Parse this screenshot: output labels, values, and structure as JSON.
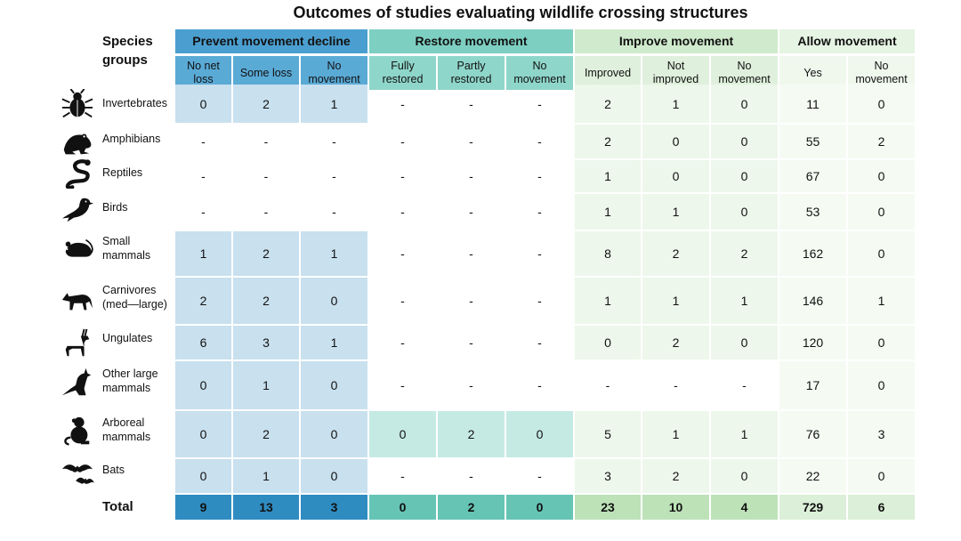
{
  "title": "Outcomes of studies evaluating wildlife crossing structures",
  "species_groups_label": "Species groups",
  "total_label": "Total",
  "colors": {
    "prevent_head": "#4b9fd0",
    "prevent_sub": "#5aaad6",
    "prevent_cell": "#c9e0ee",
    "prevent_total": "#2f8cc1",
    "restore_head": "#7dcfc2",
    "restore_sub": "#8fd6ca",
    "restore_cell": "#c5eae4",
    "restore_total": "#66c4b5",
    "improve_head": "#cfeacc",
    "improve_sub": "#dff0dc",
    "improve_cell": "#edf7eb",
    "improve_total": "#bde2b8",
    "allow_head": "#e6f4e3",
    "allow_sub": "#f0f8ee",
    "allow_cell": "#f5fbf3",
    "allow_total": "#dcefd8"
  },
  "chart_data": {
    "type": "table",
    "title": "Outcomes of studies evaluating wildlife crossing structures",
    "column_groups": [
      {
        "name": "Prevent movement decline",
        "columns": [
          "No net loss",
          "Some loss",
          "No movement"
        ]
      },
      {
        "name": "Restore movement",
        "columns": [
          "Fully restored",
          "Partly restored",
          "No movement"
        ]
      },
      {
        "name": "Improve movement",
        "columns": [
          "Improved",
          "Not improved",
          "No movement"
        ]
      },
      {
        "name": "Allow movement",
        "columns": [
          "Yes",
          "No movement"
        ]
      }
    ],
    "rows": [
      {
        "label": "Invertebrates",
        "icon": "insect-icon",
        "values": [
          "0",
          "2",
          "1",
          "-",
          "-",
          "-",
          "2",
          "1",
          "0",
          "11",
          "0"
        ]
      },
      {
        "label": "Amphibians",
        "icon": "frog-icon",
        "values": [
          "-",
          "-",
          "-",
          "-",
          "-",
          "-",
          "2",
          "0",
          "0",
          "55",
          "2"
        ]
      },
      {
        "label": "Reptiles",
        "icon": "snake-icon",
        "values": [
          "-",
          "-",
          "-",
          "-",
          "-",
          "-",
          "1",
          "0",
          "0",
          "67",
          "0"
        ]
      },
      {
        "label": "Birds",
        "icon": "bird-icon",
        "values": [
          "-",
          "-",
          "-",
          "-",
          "-",
          "-",
          "1",
          "1",
          "0",
          "53",
          "0"
        ]
      },
      {
        "label": "Small mammals",
        "icon": "rodent-icon",
        "values": [
          "1",
          "2",
          "1",
          "-",
          "-",
          "-",
          "8",
          "2",
          "2",
          "162",
          "0"
        ]
      },
      {
        "label": "Carnivores (med—large)",
        "icon": "fox-icon",
        "values": [
          "2",
          "2",
          "0",
          "-",
          "-",
          "-",
          "1",
          "1",
          "1",
          "146",
          "1"
        ]
      },
      {
        "label": "Ungulates",
        "icon": "antelope-icon",
        "values": [
          "6",
          "3",
          "1",
          "-",
          "-",
          "-",
          "0",
          "2",
          "0",
          "120",
          "0"
        ]
      },
      {
        "label": "Other large mammals",
        "icon": "kangaroo-icon",
        "values": [
          "0",
          "1",
          "0",
          "-",
          "-",
          "-",
          "-",
          "-",
          "-",
          "17",
          "0"
        ]
      },
      {
        "label": "Arboreal mammals",
        "icon": "monkey-icon",
        "values": [
          "0",
          "2",
          "0",
          "0",
          "2",
          "0",
          "5",
          "1",
          "1",
          "76",
          "3"
        ]
      },
      {
        "label": "Bats",
        "icon": "bat-icon",
        "values": [
          "0",
          "1",
          "0",
          "-",
          "-",
          "-",
          "3",
          "2",
          "0",
          "22",
          "0"
        ]
      }
    ],
    "totals": [
      "9",
      "13",
      "3",
      "0",
      "2",
      "0",
      "23",
      "10",
      "4",
      "729",
      "6"
    ]
  }
}
